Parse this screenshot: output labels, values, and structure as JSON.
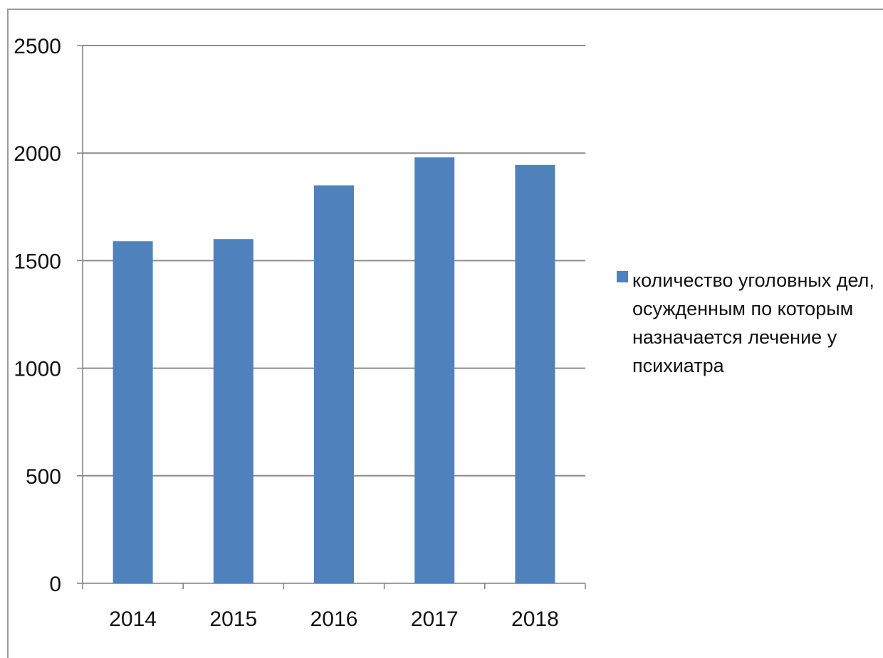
{
  "chart_data": {
    "type": "bar",
    "categories": [
      "2014",
      "2015",
      "2016",
      "2017",
      "2018"
    ],
    "series": [
      {
        "name": "количество уголовных дел, осужденным по которым назначается лечение у психиатра",
        "values": [
          1590,
          1600,
          1850,
          1980,
          1945
        ]
      }
    ],
    "title": "",
    "xlabel": "",
    "ylabel": "",
    "ylim": [
      0,
      2500
    ],
    "yticks": [
      0,
      500,
      1000,
      1500,
      2000,
      2500
    ],
    "grid": true,
    "legend_position": "right"
  },
  "colors": {
    "bar": "#4f81bd",
    "grid": "#8c8c8c",
    "axis": "#7f7f7f"
  }
}
